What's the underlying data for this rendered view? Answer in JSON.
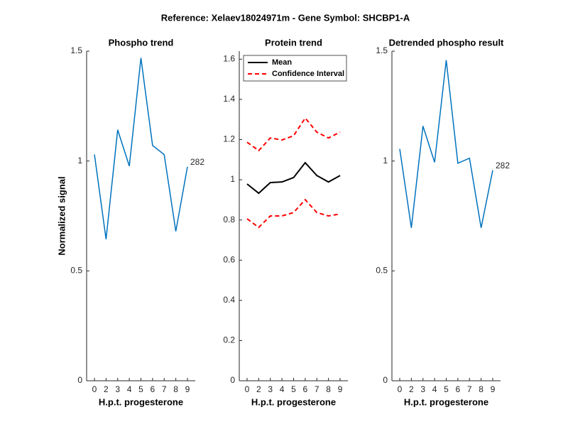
{
  "title": "Reference:  Xelaev18024971m - Gene Symbol:  SHCBP1-A",
  "y_label": "Normalized signal",
  "chart_data": [
    {
      "type": "line",
      "title": "Phospho trend",
      "x_label": "H.p.t. progesterone",
      "categories": [
        "0",
        "2",
        "3",
        "4",
        "5",
        "6",
        "7",
        "8",
        "9"
      ],
      "series": [
        {
          "color": "#0072bd",
          "values": [
            1.03,
            0.644,
            1.142,
            0.977,
            1.469,
            1.071,
            1.029,
            0.68,
            0.974
          ]
        }
      ],
      "annotation": "282",
      "ylim": [
        0,
        1.5
      ],
      "yticks": [
        0,
        0.5,
        1,
        1.5
      ]
    },
    {
      "type": "line",
      "title": "Protein trend",
      "x_label": "H.p.t. progesterone",
      "categories": [
        "0",
        "2",
        "3",
        "4",
        "5",
        "6",
        "7",
        "8",
        "9"
      ],
      "series": [
        {
          "name": "Mean",
          "color": "#000000",
          "dashed": false,
          "values": [
            0.979,
            0.933,
            0.986,
            0.989,
            1.011,
            1.085,
            1.021,
            0.989,
            1.021
          ]
        },
        {
          "name": "Confidence Interval",
          "color": "#ff0000",
          "dashed": true,
          "values": [
            1.187,
            1.145,
            1.208,
            1.198,
            1.219,
            1.307,
            1.237,
            1.208,
            1.237
          ],
          "lower": [
            0.806,
            0.763,
            0.82,
            0.82,
            0.837,
            0.901,
            0.837,
            0.82,
            0.83
          ]
        }
      ],
      "legend": "upper left",
      "ylim": [
        0,
        1.64
      ],
      "yticks": [
        0,
        0.2,
        0.4,
        0.6,
        0.8,
        1,
        1.2,
        1.4,
        1.6
      ]
    },
    {
      "type": "line",
      "title": "Detrended phospho result",
      "x_label": "H.p.t. progesterone",
      "categories": [
        "0",
        "2",
        "3",
        "4",
        "5",
        "6",
        "7",
        "8",
        "9"
      ],
      "series": [
        {
          "color": "#0072bd",
          "values": [
            1.055,
            0.696,
            1.159,
            0.994,
            1.459,
            0.99,
            1.013,
            0.696,
            0.958
          ]
        }
      ],
      "annotation": "282",
      "ylim": [
        0,
        1.5
      ],
      "yticks": [
        0,
        0.5,
        1,
        1.5
      ]
    }
  ]
}
